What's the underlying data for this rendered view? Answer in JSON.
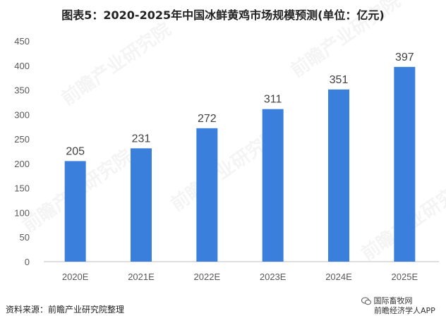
{
  "title": "图表5：2020-2025年中国冰鲜黄鸡市场规模预测(单位：亿元)",
  "source": "资料来源：前瞻产业研究院整理",
  "watermark": "前瞻产业研究院",
  "wechat": {
    "line1": "国际畜牧网",
    "line2": "前瞻经济学人APP"
  },
  "colors": {
    "bar": "#3A7FDB",
    "grid": "#D9D9D9",
    "axis": "#BFBFBF"
  },
  "chart_data": {
    "type": "bar",
    "categories": [
      "2020E",
      "2021E",
      "2022E",
      "2023E",
      "2024E",
      "2025E"
    ],
    "values": [
      205,
      231,
      272,
      311,
      351,
      397
    ],
    "yticks": [
      0,
      50,
      100,
      150,
      200,
      250,
      300,
      350,
      400,
      450
    ],
    "ylim": [
      0,
      450
    ],
    "grid": false,
    "data_labels": true
  }
}
